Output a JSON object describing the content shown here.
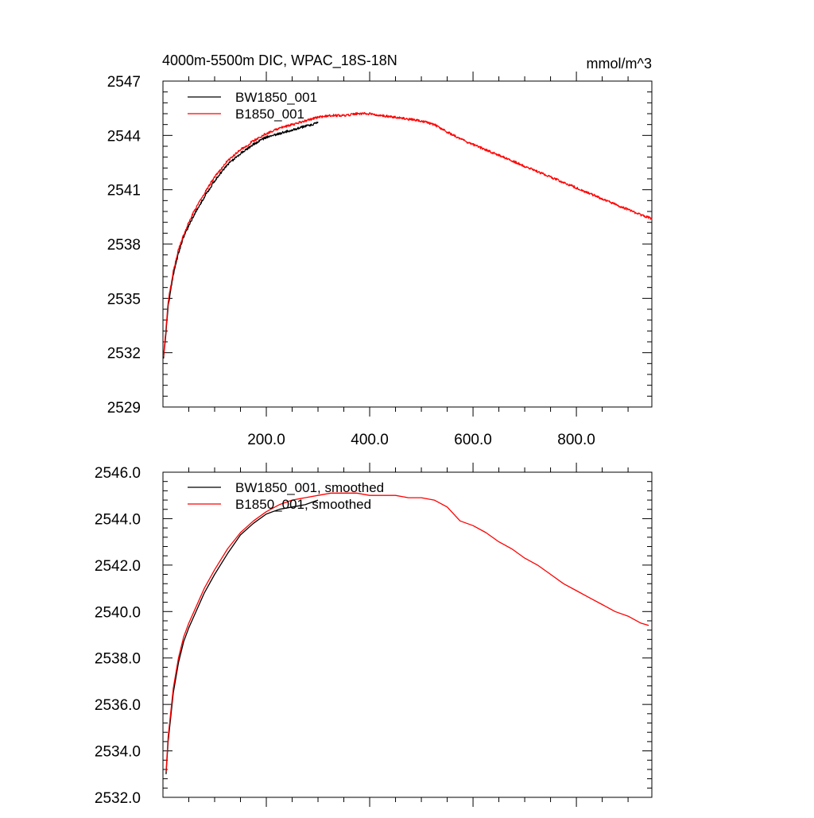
{
  "header": {
    "title": "4000m-5500m DIC, WPAC_18S-18N",
    "units": "mmol/m^3"
  },
  "chart_data": [
    {
      "type": "line",
      "title": "4000m-5500m DIC, WPAC_18S-18N",
      "units": "mmol/m^3",
      "xlabel": "",
      "ylabel": "",
      "xlim": [
        0,
        946
      ],
      "ylim": [
        2529,
        2547
      ],
      "xticks": [
        200,
        400,
        600,
        800
      ],
      "xtick_labels": [
        "200.0",
        "400.0",
        "600.0",
        "800.0"
      ],
      "yticks": [
        2529,
        2532,
        2535,
        2538,
        2541,
        2544,
        2547
      ],
      "ytick_labels": [
        "2529",
        "2532",
        "2535",
        "2538",
        "2541",
        "2544",
        "2547"
      ],
      "grid": false,
      "legend_position": "top-left",
      "series": [
        {
          "name": "BW1850_001",
          "color": "#000000",
          "noisy": true,
          "x": [
            1,
            5,
            10,
            20,
            30,
            40,
            50,
            60,
            80,
            100,
            125,
            150,
            175,
            200,
            225,
            250,
            275,
            300
          ],
          "values": [
            2531.7,
            2532.8,
            2534.6,
            2536.3,
            2537.5,
            2538.4,
            2539.0,
            2539.6,
            2540.6,
            2541.5,
            2542.4,
            2543.0,
            2543.5,
            2543.9,
            2544.1,
            2544.3,
            2544.5,
            2544.7
          ]
        },
        {
          "name": "B1850_001",
          "color": "#ff0000",
          "noisy": true,
          "x": [
            1,
            5,
            10,
            20,
            30,
            40,
            50,
            60,
            80,
            100,
            125,
            150,
            175,
            200,
            225,
            250,
            275,
            300,
            325,
            350,
            375,
            400,
            425,
            450,
            475,
            500,
            525,
            550,
            575,
            600,
            625,
            650,
            675,
            700,
            725,
            750,
            775,
            800,
            825,
            850,
            875,
            900,
            925,
            946
          ],
          "values": [
            2531.8,
            2533.0,
            2534.8,
            2536.5,
            2537.7,
            2538.5,
            2539.2,
            2539.8,
            2540.8,
            2541.7,
            2542.6,
            2543.2,
            2543.7,
            2544.1,
            2544.4,
            2544.6,
            2544.8,
            2545.0,
            2545.1,
            2545.1,
            2545.2,
            2545.2,
            2545.1,
            2545.0,
            2544.9,
            2544.8,
            2544.6,
            2544.2,
            2543.8,
            2543.5,
            2543.2,
            2542.9,
            2542.6,
            2542.3,
            2542.0,
            2541.7,
            2541.4,
            2541.1,
            2540.8,
            2540.5,
            2540.2,
            2539.9,
            2539.6,
            2539.4
          ]
        }
      ]
    },
    {
      "type": "line",
      "title": "",
      "xlabel": "",
      "ylabel": "",
      "xlim": [
        0,
        946
      ],
      "ylim": [
        2532,
        2546
      ],
      "xticks": [
        200,
        400,
        600,
        800
      ],
      "xtick_labels": [],
      "yticks": [
        2532,
        2534,
        2536,
        2538,
        2540,
        2542,
        2544,
        2546
      ],
      "ytick_labels": [
        "2532.0",
        "2534.0",
        "2536.0",
        "2538.0",
        "2540.0",
        "2542.0",
        "2544.0",
        "2546.0"
      ],
      "grid": false,
      "legend_position": "top-left",
      "series": [
        {
          "name": "BW1850_001, smoothed",
          "color": "#000000",
          "noisy": false,
          "x": [
            6,
            10,
            20,
            30,
            40,
            50,
            60,
            80,
            100,
            125,
            150,
            175,
            200,
            225,
            250,
            275,
            300
          ],
          "values": [
            2533.0,
            2534.4,
            2536.5,
            2537.8,
            2538.7,
            2539.3,
            2539.8,
            2540.8,
            2541.6,
            2542.5,
            2543.3,
            2543.8,
            2544.2,
            2544.4,
            2544.5,
            2544.6,
            2544.8
          ]
        },
        {
          "name": "B1850_001, smoothed",
          "color": "#ff0000",
          "noisy": false,
          "x": [
            6,
            10,
            20,
            30,
            40,
            50,
            60,
            80,
            100,
            125,
            150,
            175,
            200,
            225,
            250,
            275,
            300,
            325,
            350,
            375,
            400,
            425,
            450,
            475,
            500,
            525,
            550,
            575,
            600,
            625,
            650,
            675,
            700,
            725,
            750,
            775,
            800,
            825,
            850,
            875,
            900,
            925,
            940
          ],
          "values": [
            2533.1,
            2534.6,
            2536.7,
            2538.0,
            2538.9,
            2539.5,
            2540.0,
            2541.0,
            2541.8,
            2542.7,
            2543.4,
            2543.9,
            2544.3,
            2544.6,
            2544.8,
            2544.9,
            2545.0,
            2545.1,
            2545.1,
            2545.1,
            2545.0,
            2545.0,
            2545.0,
            2544.9,
            2544.9,
            2544.8,
            2544.5,
            2543.9,
            2543.7,
            2543.4,
            2543.0,
            2542.7,
            2542.3,
            2542.0,
            2541.6,
            2541.2,
            2540.9,
            2540.6,
            2540.3,
            2540.0,
            2539.8,
            2539.5,
            2539.4
          ]
        }
      ]
    }
  ]
}
